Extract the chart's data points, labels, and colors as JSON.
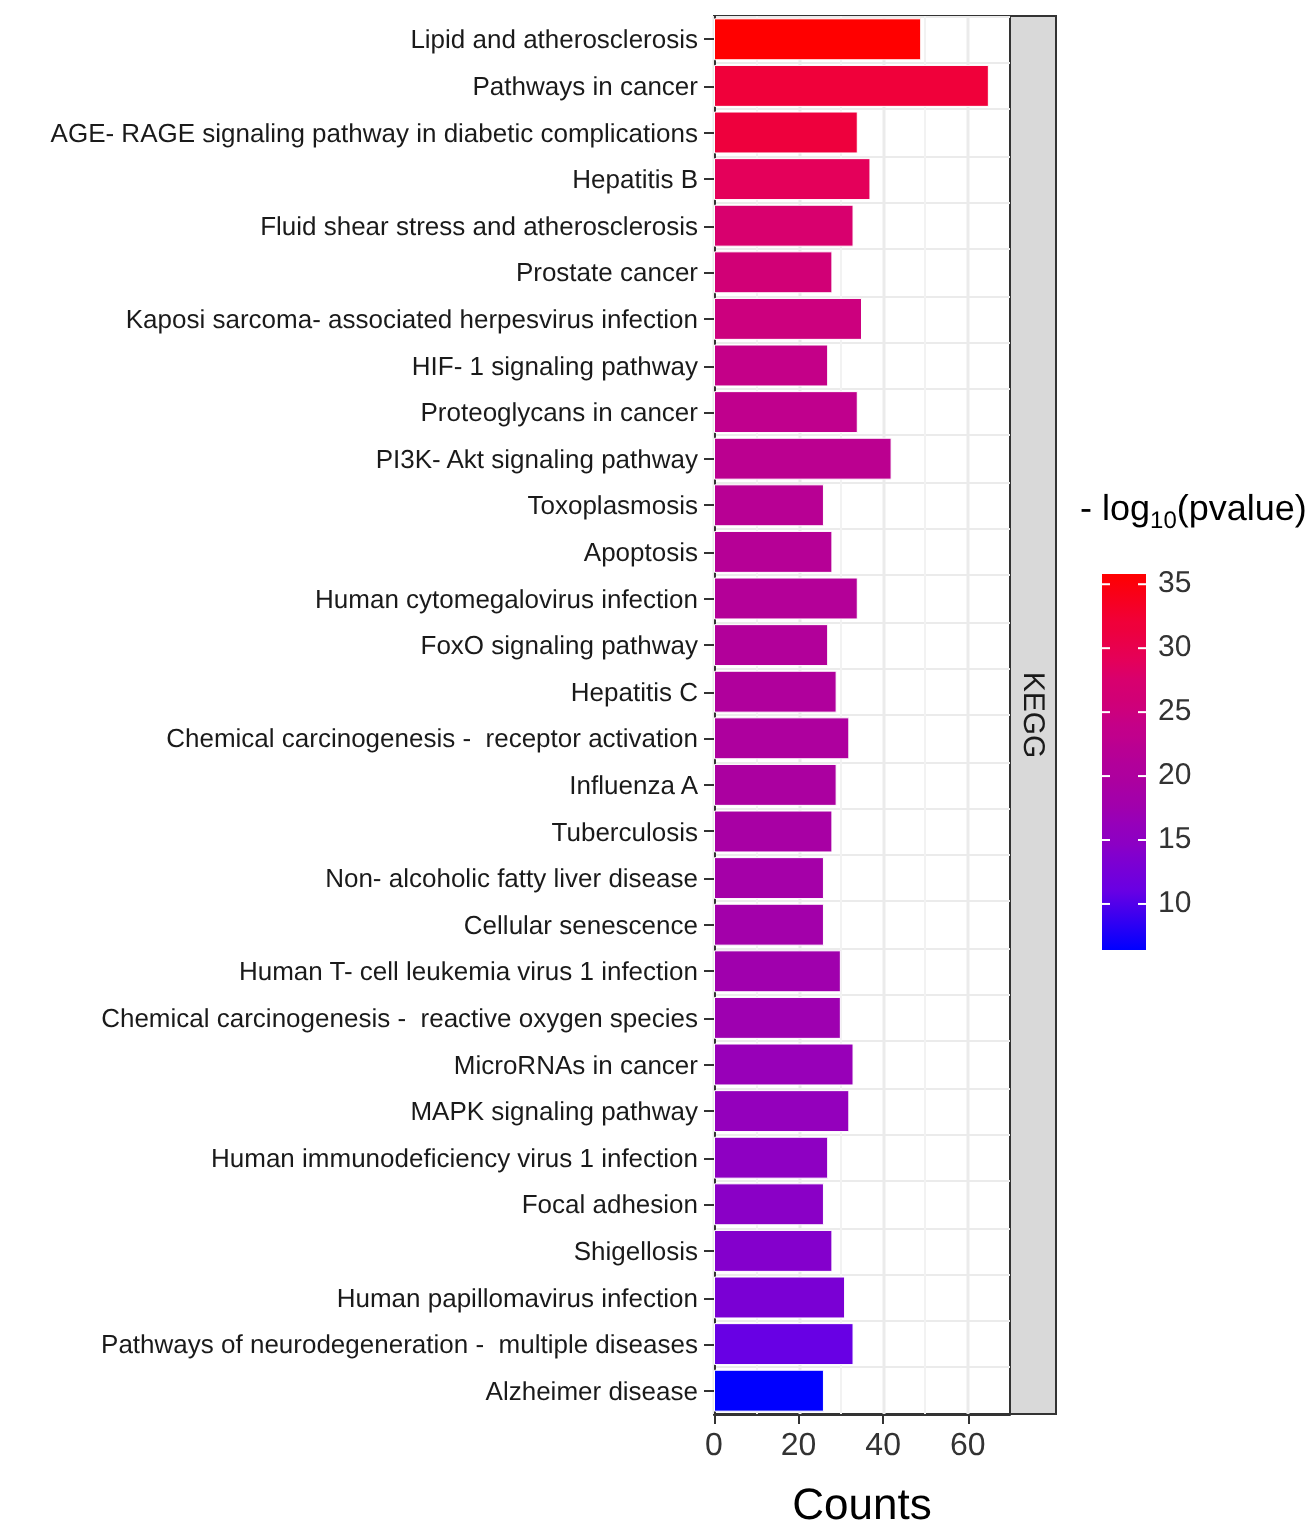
{
  "chart_data": {
    "type": "bar",
    "orientation": "horizontal",
    "xlabel": "Counts",
    "clabel": "- log$_{10}$(pvalue)",
    "categories": [
      "Lipid and atherosclerosis",
      "Pathways in cancer",
      "AGE- RAGE signaling pathway in diabetic complications",
      "Hepatitis B",
      "Fluid shear stress and atherosclerosis",
      "Prostate cancer",
      "Kaposi sarcoma- associated herpesvirus infection",
      "HIF- 1 signaling pathway",
      "Proteoglycans in cancer",
      "PI3K- Akt signaling pathway",
      "Toxoplasmosis",
      "Apoptosis",
      "Human cytomegalovirus infection",
      "FoxO signaling pathway",
      "Hepatitis C",
      "Chemical carcinogenesis -  receptor activation",
      "Influenza A",
      "Tuberculosis",
      "Non- alcoholic fatty liver disease",
      "Cellular senescence",
      "Human T- cell leukemia virus 1 infection",
      "Chemical carcinogenesis -  reactive oxygen species",
      "MicroRNAs in cancer",
      "MAPK signaling pathway",
      "Human immunodeficiency virus 1 infection",
      "Focal adhesion",
      "Shigellosis",
      "Human papillomavirus infection",
      "Pathways of neurodegeneration -  multiple diseases",
      "Alzheimer disease"
    ],
    "values": [
      49,
      65,
      34,
      37,
      33,
      28,
      35,
      27,
      34,
      42,
      26,
      28,
      34,
      27,
      29,
      32,
      29,
      28,
      26,
      26,
      30,
      30,
      33,
      32,
      27,
      26,
      28,
      31,
      33,
      26
    ],
    "cvalues": [
      35.8,
      32,
      31.5,
      29,
      27.5,
      26,
      25,
      24,
      23,
      22.5,
      22,
      21.5,
      21.3,
      21,
      20.5,
      20,
      19.5,
      19,
      18.5,
      18,
      17.5,
      17.3,
      16.5,
      16,
      15,
      14.5,
      14,
      13,
      11,
      6.4
    ],
    "colors": [
      "#ff0000",
      "#f0003a",
      "#ee003d",
      "#e4005a",
      "#d8006e",
      "#d10076",
      "#cc007e",
      "#c40088",
      "#c0008d",
      "#bb0090",
      "#b80094",
      "#b60096",
      "#b40098",
      "#b2009a",
      "#b0009c",
      "#ae009e",
      "#ab00a0",
      "#a800a4",
      "#a500a8",
      "#a300aa",
      "#a000ad",
      "#9e00b0",
      "#9800b8",
      "#9400bc",
      "#8e00c2",
      "#8a00c6",
      "#8400cc",
      "#7a00d4",
      "#6800e4",
      "#0000ff"
    ],
    "clim": [
      6.4,
      35.8
    ],
    "cticks": [
      10,
      15,
      20,
      25,
      30,
      35
    ],
    "xlim": [
      0,
      70
    ],
    "xticks": [
      0,
      20,
      40,
      60
    ],
    "grid": true,
    "annotations": [
      "KEGG"
    ]
  }
}
